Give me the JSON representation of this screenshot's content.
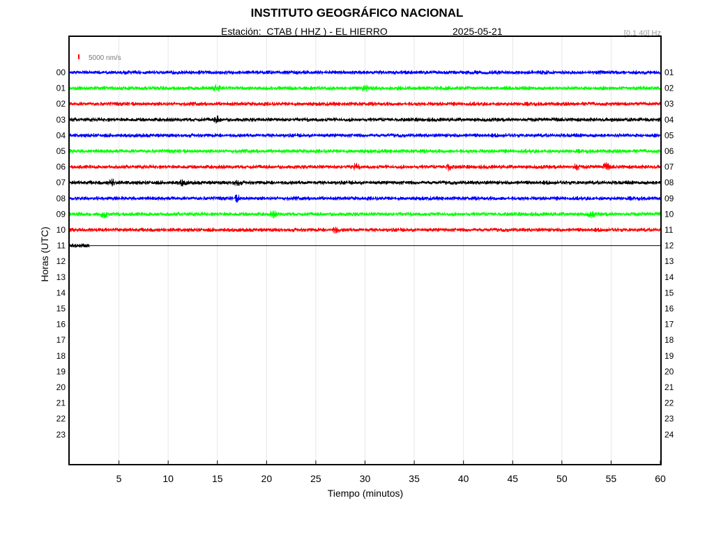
{
  "header": {
    "title": "INSTITUTO GEOGRÁFICO NACIONAL",
    "station_text": "Estación:  CTAB ( HHZ ) - EL HIERRO",
    "date": "2025-05-21",
    "filter_text": "[0.1 40] Hz"
  },
  "chart_data": {
    "type": "line",
    "ylabel": "Horas (UTC)",
    "xlabel": "Tiempo (minutos)",
    "xlim": [
      0,
      60
    ],
    "x_ticks": [
      5,
      10,
      15,
      20,
      25,
      30,
      35,
      40,
      45,
      50,
      55,
      60
    ],
    "grid": "vertical",
    "left_hour_labels": [
      "00",
      "01",
      "02",
      "03",
      "04",
      "05",
      "06",
      "07",
      "08",
      "09",
      "10",
      "11",
      "12",
      "13",
      "14",
      "15",
      "16",
      "17",
      "18",
      "19",
      "20",
      "21",
      "22",
      "23"
    ],
    "right_hour_labels": [
      "01",
      "02",
      "03",
      "04",
      "05",
      "06",
      "07",
      "08",
      "09",
      "10",
      "11",
      "12",
      "13",
      "14",
      "15",
      "16",
      "17",
      "18",
      "19",
      "20",
      "21",
      "22",
      "23",
      "24"
    ],
    "scale_bar": {
      "label": "5000 nm/s",
      "color": "#ff0000"
    },
    "colors": [
      "#0000ff",
      "#00ff00",
      "#ff0000",
      "#000000"
    ],
    "recorded_until_minute_last_hour": 2,
    "traces": [
      {
        "hour": "00",
        "color": "#0000ff",
        "events": []
      },
      {
        "hour": "01",
        "color": "#00ff00",
        "events": [
          15,
          30
        ]
      },
      {
        "hour": "02",
        "color": "#ff0000",
        "events": []
      },
      {
        "hour": "03",
        "color": "#000000",
        "events": [
          15
        ]
      },
      {
        "hour": "04",
        "color": "#0000ff",
        "events": []
      },
      {
        "hour": "05",
        "color": "#00ff00",
        "events": []
      },
      {
        "hour": "06",
        "color": "#ff0000",
        "events": [
          29,
          38.5,
          51.5,
          54.5
        ]
      },
      {
        "hour": "07",
        "color": "#000000",
        "events": [
          4.3,
          11.5,
          17
        ]
      },
      {
        "hour": "08",
        "color": "#0000ff",
        "events": [
          17
        ]
      },
      {
        "hour": "09",
        "color": "#00ff00",
        "events": [
          3.5,
          20.7,
          53
        ]
      },
      {
        "hour": "10",
        "color": "#ff0000",
        "events": [
          27
        ]
      },
      {
        "hour": "11",
        "color": "#000000",
        "events": []
      }
    ]
  }
}
